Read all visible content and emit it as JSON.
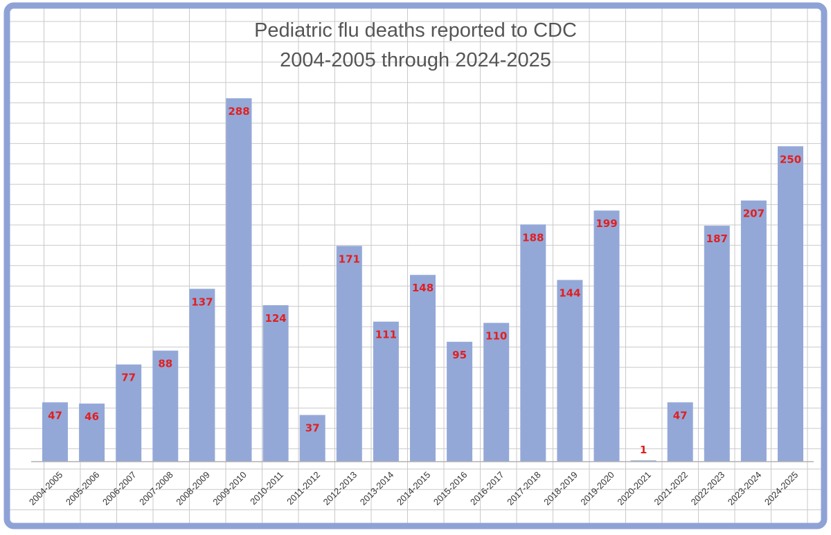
{
  "colors": {
    "bar": "#94a8d8",
    "data_label": "#e02020",
    "frame": "#8ea2d6",
    "grid": "#c9c9c9",
    "title": "#555555"
  },
  "chart_data": {
    "type": "bar",
    "title": "Pediatric flu deaths reported to CDC",
    "subtitle": "2004-2005 through 2024-2025",
    "xlabel": "",
    "ylabel": "",
    "ylim": [
      0,
      300
    ],
    "grid": true,
    "legend": "none",
    "categories": [
      "2004-2005",
      "2005-2006",
      "2006-2007",
      "2007-2008",
      "2008-2009",
      "2009-2010",
      "2010-2011",
      "2011-2012",
      "2012-2013",
      "2013-2014",
      "2014-2015",
      "2015-2016",
      "2016-2017",
      "2017-2018",
      "2018-2019",
      "2019-2020",
      "2020-2021",
      "2021-2022",
      "2022-2023",
      "2023-2024",
      "2024-2025"
    ],
    "values": [
      47,
      46,
      77,
      88,
      137,
      288,
      124,
      37,
      171,
      111,
      148,
      95,
      110,
      188,
      144,
      199,
      1,
      47,
      187,
      207,
      250
    ],
    "data_labels": [
      "47",
      "46",
      "77",
      "88",
      "137",
      "288",
      "124",
      "37",
      "171",
      "111",
      "148",
      "95",
      "110",
      "188",
      "144",
      "199",
      "1",
      "47",
      "187",
      "207",
      "250"
    ]
  }
}
